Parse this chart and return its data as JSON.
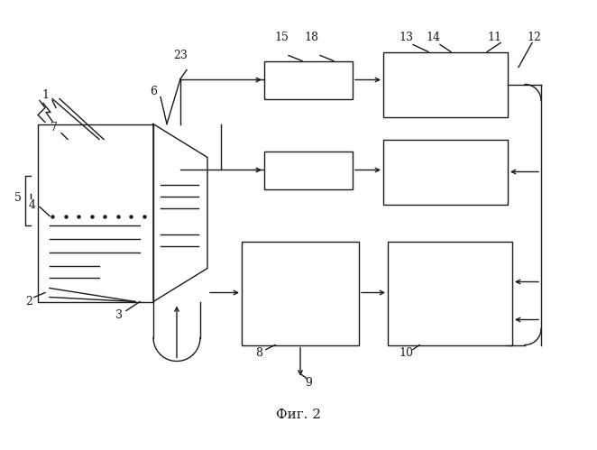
{
  "fig_width": 6.62,
  "fig_height": 4.99,
  "dpi": 100,
  "bg_color": "#ffffff",
  "line_color": "#1a1a1a",
  "line_width": 1.0,
  "caption": "Фиг. 2"
}
